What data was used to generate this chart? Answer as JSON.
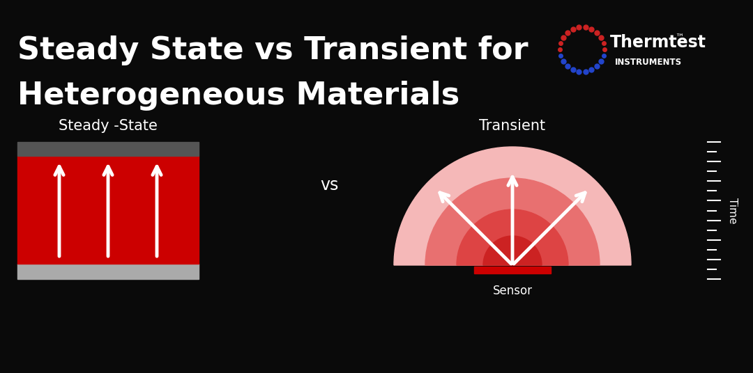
{
  "bg_color": "#0a0a0a",
  "title_line1": "Steady State vs Transient for",
  "title_line2": "Heterogeneous Materials",
  "title_color": "#ffffff",
  "title_fontsize": 32,
  "label_ss": "Steady -State",
  "label_tr": "Transient",
  "label_vs": "vs",
  "label_sensor": "Sensor",
  "label_time": "Time",
  "ss_rect_color": "#cc0000",
  "ss_plate_top_color": "#555555",
  "ss_plate_bot_color": "#aaaaaa",
  "tr_color_outer": "#f5b8b8",
  "tr_color_mid": "#e87070",
  "tr_color_mid2": "#dd4444",
  "tr_color_inner": "#cc2222",
  "tr_sensor_color": "#cc0000",
  "arrow_color": "#ffffff",
  "tick_color": "#ffffff",
  "logo_red": "#cc2222",
  "logo_blue": "#2244cc"
}
